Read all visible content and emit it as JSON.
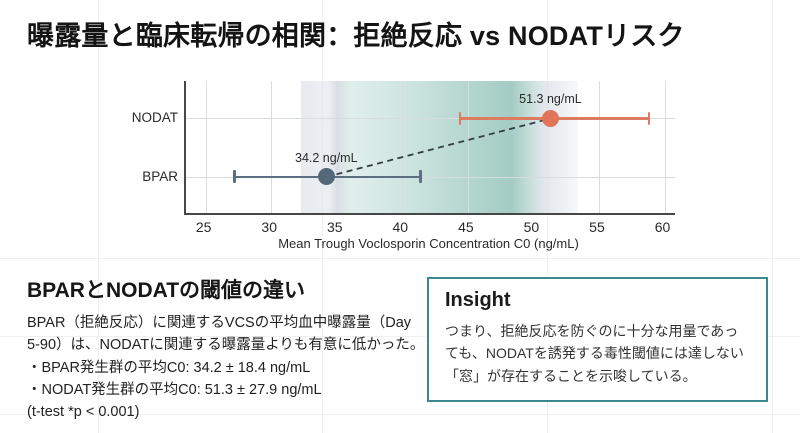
{
  "title": "曝露量と臨床転帰の相関：拒絶反応 vs NODATリスク",
  "chart_data": {
    "type": "scatter",
    "subtype": "dot-plot-with-error-bars",
    "xlabel": "Mean Trough Voclosporin Concentration C0 (ng/mL)",
    "xlim": [
      23.5,
      60.8
    ],
    "xticks": [
      25,
      30,
      35,
      40,
      45,
      50,
      55,
      60
    ],
    "categories": [
      "NODAT",
      "BPAR"
    ],
    "series": [
      {
        "name": "NODAT",
        "mean": 51.3,
        "err_low": 44.4,
        "err_high": 58.8,
        "label": "51.3 ng/mL",
        "color": "#dd7b60",
        "point_color": "#e0755a"
      },
      {
        "name": "BPAR",
        "mean": 34.2,
        "err_low": 27.2,
        "err_high": 41.4,
        "label": "34.2 ng/mL",
        "color": "#5b6e82",
        "point_color": "#546879"
      }
    ],
    "band": {
      "from": 32.3,
      "to": 53.4
    },
    "connector": {
      "from": "BPAR",
      "to": "NODAT",
      "style": "dashed",
      "color": "#333d46"
    },
    "grid": true,
    "legend": false
  },
  "left_panel": {
    "heading": "BPARとNODATの閾値の違い",
    "body": "BPAR（拒絶反応）に関連するVCSの平均血中曝露量（Day 5-90）は、NODATに関連する曝露量よりも有意に低かった。",
    "bullets": [
      "・BPAR発生群の平均C0: 34.2 ± 18.4 ng/mL",
      "・NODAT発生群の平均C0: 51.3 ± 27.9 ng/mL"
    ],
    "footnote": "(t-test *p < 0.001)"
  },
  "insight_panel": {
    "heading": "Insight",
    "body": "つまり、拒絶反応を防ぐのに十分な用量であっても、NODATを誘発する毒性閾値には達しない「窓」が存在することを示唆している。",
    "border_color": "#3c888c"
  },
  "colors": {
    "nodat_accent": "#e0755a",
    "bpar_accent": "#546879",
    "band_teal": "#a3ccc4",
    "insight_border": "#3c888c"
  }
}
